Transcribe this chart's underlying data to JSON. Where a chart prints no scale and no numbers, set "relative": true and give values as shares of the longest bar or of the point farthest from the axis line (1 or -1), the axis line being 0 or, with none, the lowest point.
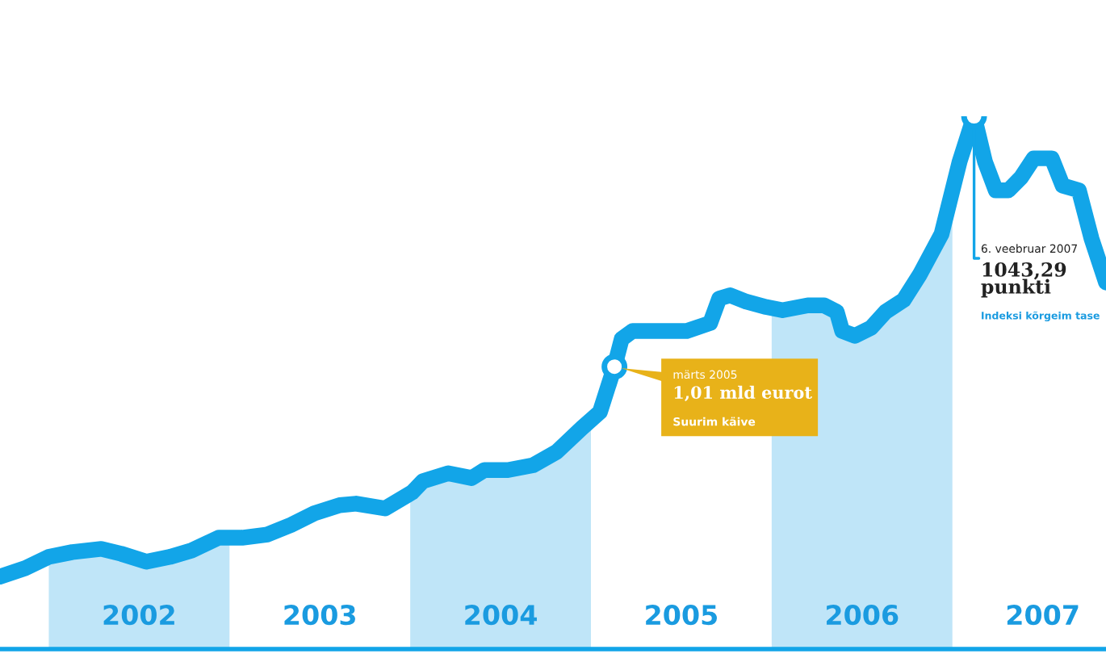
{
  "chart_data": {
    "type": "line",
    "relative": true,
    "x": [
      2001.73,
      2001.87,
      2002.0,
      2002.13,
      2002.29,
      2002.4,
      2002.54,
      2002.67,
      2002.79,
      2002.94,
      2003.07,
      2003.21,
      2003.34,
      2003.47,
      2003.61,
      2003.7,
      2003.86,
      2004.01,
      2004.07,
      2004.21,
      2004.34,
      2004.41,
      2004.54,
      2004.68,
      2004.81,
      2004.95,
      2005.05,
      2005.13,
      2005.17,
      2005.23,
      2005.39,
      2005.53,
      2005.66,
      2005.71,
      2005.77,
      2005.86,
      2005.97,
      2006.06,
      2006.2,
      2006.29,
      2006.36,
      2006.39,
      2006.46,
      2006.55,
      2006.63,
      2006.73,
      2006.82,
      2006.94,
      2007.04,
      2007.12,
      2007.18,
      2007.24,
      2007.31,
      2007.38,
      2007.45,
      2007.55,
      2007.61,
      2007.7,
      2007.77,
      2007.85
    ],
    "series": [
      {
        "color": "#12a5e8",
        "values": [
          0.136,
          0.152,
          0.173,
          0.182,
          0.188,
          0.179,
          0.164,
          0.173,
          0.185,
          0.209,
          0.209,
          0.215,
          0.233,
          0.255,
          0.27,
          0.273,
          0.264,
          0.294,
          0.315,
          0.33,
          0.321,
          0.336,
          0.336,
          0.345,
          0.37,
          0.415,
          0.445,
          0.53,
          0.582,
          0.597,
          0.597,
          0.597,
          0.612,
          0.658,
          0.664,
          0.652,
          0.642,
          0.636,
          0.645,
          0.645,
          0.633,
          0.597,
          0.588,
          0.603,
          0.633,
          0.655,
          0.703,
          0.779,
          0.915,
          1.0,
          0.915,
          0.861,
          0.861,
          0.885,
          0.921,
          0.921,
          0.87,
          0.861,
          0.77,
          0.688
        ]
      }
    ],
    "xlim": [
      2001.73,
      2007.85
    ],
    "xticks": [
      {
        "value": 2002.5,
        "label": "2002"
      },
      {
        "value": 2003.5,
        "label": "2003"
      },
      {
        "value": 2004.5,
        "label": "2004"
      },
      {
        "value": 2005.5,
        "label": "2005"
      },
      {
        "value": 2006.5,
        "label": "2006"
      },
      {
        "value": 2007.5,
        "label": "2007"
      }
    ],
    "bands": [
      {
        "axis": "x",
        "from": 2002,
        "to": 2003,
        "color": "#bfe5f8"
      },
      {
        "axis": "x",
        "from": 2004,
        "to": 2005,
        "color": "#bfe5f8"
      },
      {
        "axis": "x",
        "from": 2006,
        "to": 2007,
        "color": "#bfe5f8"
      }
    ],
    "annotations": [
      {
        "text": "märts 2005",
        "x": 2005.13,
        "y": 0.53
      },
      "1,01 mld eurot",
      "Suurim käive",
      {
        "text": "6. veebruar 2007",
        "x": 2007.12,
        "y": 1.0
      },
      "1043,29\npunkti",
      "Indeksi kõrgeim tase"
    ],
    "grid": false,
    "legend": false,
    "marker": "none",
    "line_style": "solid"
  }
}
